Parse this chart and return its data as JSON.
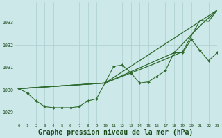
{
  "background_color": "#cce8e8",
  "grid_color": "#aacfcf",
  "line_color": "#2d6a2d",
  "xlabel": "Graphe pression niveau de la mer (hPa)",
  "xlim": [
    -0.5,
    23
  ],
  "ylim": [
    1028.5,
    1033.9
  ],
  "yticks": [
    1029,
    1030,
    1031,
    1032,
    1033
  ],
  "xticks": [
    0,
    1,
    2,
    3,
    4,
    5,
    6,
    7,
    8,
    9,
    10,
    11,
    12,
    13,
    14,
    15,
    16,
    17,
    18,
    19,
    20,
    21,
    22,
    23
  ],
  "series_smooth": [
    [
      [
        0,
        1030.05
      ],
      [
        10,
        1030.3
      ],
      [
        23,
        1033.55
      ]
    ],
    [
      [
        0,
        1030.05
      ],
      [
        10,
        1030.3
      ],
      [
        18,
        1031.65
      ],
      [
        21,
        1032.85
      ],
      [
        23,
        1033.55
      ]
    ],
    [
      [
        0,
        1030.05
      ],
      [
        10,
        1030.3
      ],
      [
        16,
        1031.2
      ],
      [
        19,
        1031.7
      ],
      [
        21,
        1033.1
      ],
      [
        22,
        1033.05
      ],
      [
        23,
        1033.55
      ]
    ]
  ],
  "series_markers": [
    1030.05,
    1029.85,
    1029.5,
    1029.25,
    1029.2,
    1029.2,
    1029.2,
    1029.25,
    1029.5,
    1029.6,
    1030.3,
    1031.05,
    1031.1,
    1030.75,
    1030.3,
    1030.35,
    1030.6,
    1030.85,
    1031.65,
    1031.65,
    1032.25,
    1031.75,
    1031.3,
    1031.65
  ],
  "figsize": [
    3.2,
    2.0
  ],
  "dpi": 100
}
